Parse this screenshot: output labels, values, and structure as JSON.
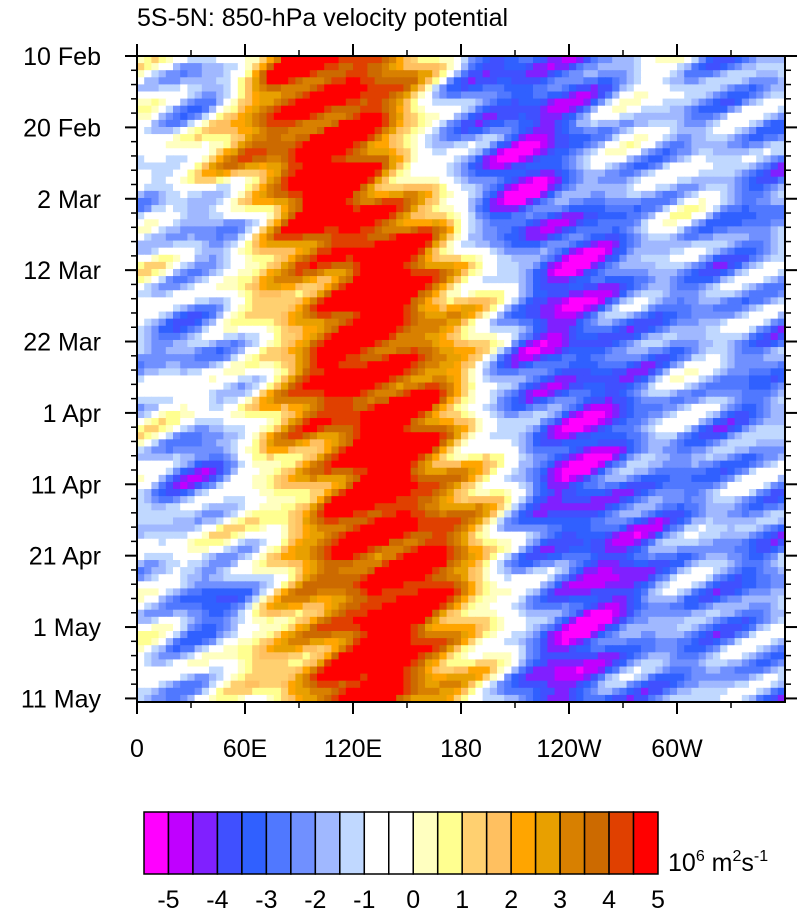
{
  "chart_data": {
    "type": "heatmap",
    "title": "5S-5N: 850-hPa velocity potential",
    "x_axis": {
      "ticks": [
        {
          "lon": 0,
          "label": "0"
        },
        {
          "lon": 60,
          "label": "60E"
        },
        {
          "lon": 120,
          "label": "120E"
        },
        {
          "lon": 180,
          "label": "180"
        },
        {
          "lon": 240,
          "label": "120W"
        },
        {
          "lon": 300,
          "label": "60W"
        }
      ],
      "range": [
        0,
        360
      ]
    },
    "y_axis": {
      "ticks": [
        {
          "day": 0,
          "label": "10 Feb"
        },
        {
          "day": 10,
          "label": "20 Feb"
        },
        {
          "day": 20,
          "label": "2 Mar"
        },
        {
          "day": 30,
          "label": "12 Mar"
        },
        {
          "day": 40,
          "label": "22 Mar"
        },
        {
          "day": 50,
          "label": "1 Apr"
        },
        {
          "day": 60,
          "label": "11 Apr"
        },
        {
          "day": 70,
          "label": "21 Apr"
        },
        {
          "day": 80,
          "label": "1 May"
        },
        {
          "day": 90,
          "label": "11 May"
        }
      ],
      "range": [
        "10 Feb",
        "11 May"
      ]
    },
    "colorbar": {
      "units_base": "10",
      "units_exp": "6",
      "units_rest": " m",
      "units_sq": "2",
      "units_s": "s",
      "units_neg": "-1",
      "labels": [
        "-5",
        "-4",
        "-3",
        "-2",
        "-1",
        "0",
        "1",
        "2",
        "3",
        "4",
        "5"
      ],
      "colors": [
        "#ff00ff",
        "#c000ff",
        "#8020ff",
        "#4050ff",
        "#3060ff",
        "#5078ff",
        "#7090ff",
        "#a0b8ff",
        "#c0d8ff",
        "#ffffff",
        "#ffffff",
        "#ffffc0",
        "#ffff90",
        "#ffd070",
        "#ffc060",
        "#ffa500",
        "#e8a000",
        "#d88000",
        "#cc6a00",
        "#e04000",
        "#ff0000"
      ]
    },
    "field_description": {
      "red_core_center_lon": [
        {
          "day": 0,
          "lon": 110
        },
        {
          "day": 15,
          "lon": 100
        },
        {
          "day": 30,
          "lon": 135
        },
        {
          "day": 45,
          "lon": 130
        },
        {
          "day": 60,
          "lon": 140
        },
        {
          "day": 75,
          "lon": 145
        },
        {
          "day": 90,
          "lon": 130
        }
      ]
    }
  }
}
